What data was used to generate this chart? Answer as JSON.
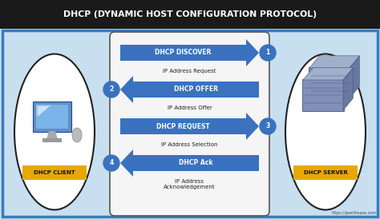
{
  "title": "DHCP (DYNAMIC HOST CONFIGURATION PROTOCOL)",
  "title_bg": "#1a1a1a",
  "title_color": "#ffffff",
  "bg_color": "#c8dff0",
  "border_color": "#3a7bbf",
  "center_box_bg": "#f5f5f5",
  "center_box_border": "#555555",
  "arrow_color": "#3a72c0",
  "sub_label_color": "#222222",
  "badge_bg": "#e8a800",
  "badge_color": "#111111",
  "watermark_color": "#b0c8e0",
  "url_color": "#444444",
  "steps": [
    {
      "label": "DHCP DISCOVER",
      "sublabel": "IP Address Request",
      "number": "1",
      "direction": "right"
    },
    {
      "label": "DHCP OFFER",
      "sublabel": "IP Address Offer",
      "number": "2",
      "direction": "left"
    },
    {
      "label": "DHCP REQUEST",
      "sublabel": "IP Address Selection",
      "number": "3",
      "direction": "right"
    },
    {
      "label": "DHCP Ack",
      "sublabel": "IP Address\nAcknowledgement",
      "number": "4",
      "direction": "left"
    }
  ],
  "client_label": "DHCP CLIENT",
  "server_label": "DHCP SERVER",
  "url": "https://ipwithease.com"
}
